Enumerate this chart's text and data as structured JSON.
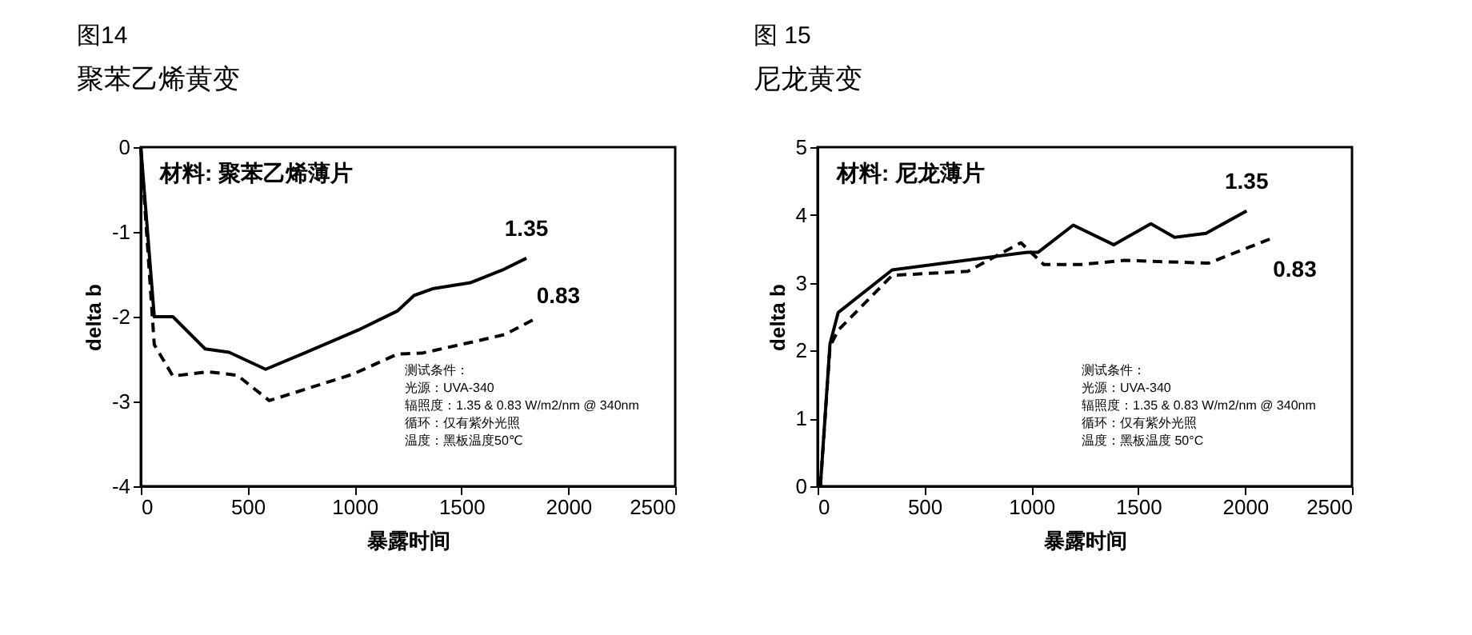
{
  "chart_data": [
    {
      "type": "line",
      "title": "图14",
      "subtitle": "聚苯乙烯黄变",
      "xlabel": "暴露时间",
      "ylabel": "delta b",
      "xlim": [
        0,
        2500
      ],
      "xticks": [
        0,
        500,
        1000,
        1500,
        2000,
        2500
      ],
      "ylim": [
        -4,
        0
      ],
      "yticks": [
        -4,
        -3,
        -2,
        -1,
        0
      ],
      "grid": false,
      "legend": false,
      "annotations": [
        "材料: 聚苯乙烯薄片",
        "测试条件：",
        "光源：UVA-340",
        "辐照度：1.35 & 0.83 W/m2/nm @ 340nm",
        "循环：仅有紫外光照",
        "温度：黑板温度50℃"
      ],
      "series": [
        {
          "name": "1.35",
          "color": "#000000",
          "line_style": "solid",
          "x": [
            0,
            63,
            150,
            301,
            413,
            584,
            764,
            1015,
            1202,
            1278,
            1365,
            1541,
            1691,
            1804
          ],
          "values": [
            0,
            -2.0,
            -2.0,
            -2.38,
            -2.42,
            -2.62,
            -2.43,
            -2.16,
            -1.93,
            -1.75,
            -1.67,
            -1.6,
            -1.45,
            -1.31
          ]
        },
        {
          "name": "0.83",
          "color": "#000000",
          "line_style": "dashed",
          "x": [
            0,
            63,
            150,
            313,
            451,
            601,
            990,
            1202,
            1315,
            1566,
            1703,
            1841
          ],
          "values": [
            0,
            -2.33,
            -2.7,
            -2.65,
            -2.69,
            -2.99,
            -2.68,
            -2.44,
            -2.43,
            -2.29,
            -2.21,
            -2.03
          ]
        }
      ]
    },
    {
      "type": "line",
      "title": "图 15",
      "subtitle": "尼龙黄变",
      "xlabel": "暴露时间",
      "ylabel": "delta b",
      "xlim": [
        0,
        2500
      ],
      "xticks": [
        0,
        500,
        1000,
        1500,
        2000,
        2500
      ],
      "ylim": [
        0,
        5
      ],
      "yticks": [
        0,
        1,
        2,
        3,
        4,
        5
      ],
      "grid": false,
      "legend": false,
      "annotations": [
        "材料: 尼龙薄片",
        "测试条件：",
        "光源：UVA-340",
        "辐照度：1.35 & 0.83 W/m2/nm @ 340nm",
        "循环：仅有紫外光照",
        "温度：黑板温度  50°C"
      ],
      "series": [
        {
          "name": "1.35",
          "color": "#000000",
          "line_style": "solid",
          "x": [
            13,
            58,
            96,
            349,
            982,
            1032,
            1196,
            1386,
            1559,
            1670,
            1817,
            2007
          ],
          "values": [
            0,
            2.1,
            2.56,
            3.19,
            3.45,
            3.45,
            3.85,
            3.56,
            3.87,
            3.67,
            3.73,
            4.06
          ]
        },
        {
          "name": "0.83",
          "color": "#000000",
          "line_style": "dashed",
          "x": [
            13,
            58,
            96,
            349,
            703,
            951,
            1058,
            1235,
            1437,
            1829,
            2120
          ],
          "values": [
            0,
            2.06,
            2.3,
            3.11,
            3.17,
            3.59,
            3.27,
            3.27,
            3.33,
            3.29,
            3.65
          ]
        }
      ]
    }
  ]
}
